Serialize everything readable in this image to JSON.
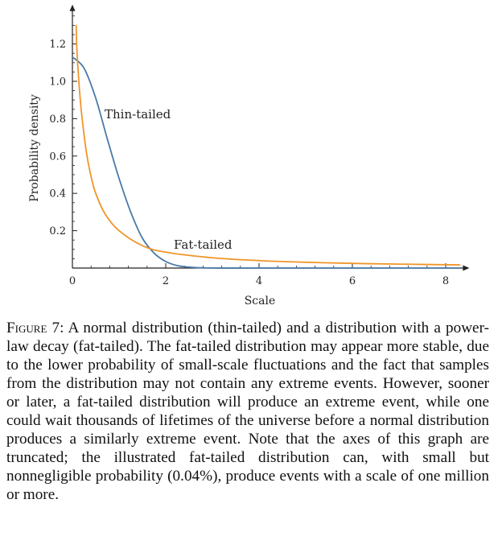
{
  "chart_data": {
    "type": "line",
    "xlabel": "Scale",
    "ylabel": "Probability density",
    "xlim": [
      0,
      8.3
    ],
    "ylim": [
      0,
      1.35
    ],
    "x_ticks": [
      0,
      2,
      4,
      6,
      8
    ],
    "x_tick_labels": [
      "0",
      "2",
      "4",
      "6",
      "8"
    ],
    "y_ticks": [
      0.2,
      0.4,
      0.6,
      0.8,
      1.0,
      1.2
    ],
    "y_tick_labels": [
      "0.2",
      "0.4",
      "0.6",
      "0.8",
      "1.0",
      "1.2"
    ],
    "grid": false,
    "series": [
      {
        "name": "Thin-tailed",
        "color": "#4a7aa8",
        "x": [
          0,
          0.25,
          0.5,
          0.75,
          1.0,
          1.25,
          1.5,
          1.75,
          2.0,
          2.25,
          2.5,
          3.0,
          4.0,
          6.0,
          8.3
        ],
        "y": [
          1.13,
          1.07,
          0.91,
          0.69,
          0.48,
          0.3,
          0.16,
          0.08,
          0.035,
          0.013,
          0.005,
          0.0,
          0.0,
          0.0,
          0.0
        ]
      },
      {
        "name": "Fat-tailed",
        "color": "#f0952a",
        "x": [
          0.08,
          0.1,
          0.15,
          0.2,
          0.3,
          0.4,
          0.5,
          0.7,
          1.0,
          1.5,
          2.0,
          3.0,
          4.0,
          5.0,
          6.0,
          7.0,
          8.3
        ],
        "y": [
          1.3,
          1.15,
          0.96,
          0.82,
          0.62,
          0.49,
          0.4,
          0.29,
          0.2,
          0.12,
          0.085,
          0.055,
          0.04,
          0.031,
          0.025,
          0.021,
          0.017
        ]
      }
    ]
  },
  "caption": {
    "label": "Figure 7:",
    "text": "A normal distribution (thin-tailed) and a distribution with a power-law decay (fat-tailed). The fat-tailed distribution may appear more stable, due to the lower probability of small-scale fluctuations and the fact that samples from the distribution may not contain any extreme events. However, sooner or later, a fat-tailed distribution will produce an extreme event, while one could wait thousands of lifetimes of the universe before a normal distribution produces a similarly extreme event. Note that the axes of this graph are truncated; the illustrated fat-tailed distribution can, with small but nonnegligible probability (0.04%), produce events with a scale of one million or more."
  }
}
